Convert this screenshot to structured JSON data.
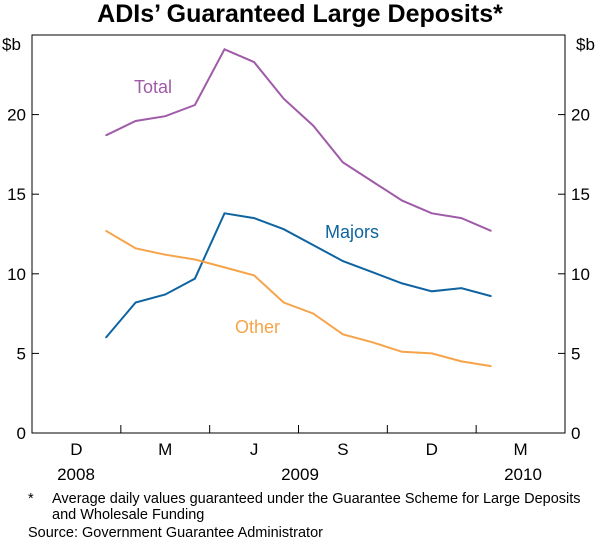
{
  "chart_data": {
    "type": "line",
    "title": "ADIs’ Guaranteed Large Deposits*",
    "ylabel_left": "$b",
    "ylabel_right": "$b",
    "ylim": [
      0,
      25
    ],
    "yticks": [
      0,
      5,
      10,
      15,
      20
    ],
    "xtick_labels": [
      "D",
      "M",
      "J",
      "S",
      "D",
      "M"
    ],
    "year_labels": [
      "2008",
      "2009",
      "2010"
    ],
    "x": [
      "Jan 2009",
      "Feb 2009",
      "Mar 2009",
      "Apr 2009",
      "May 2009",
      "Jun 2009",
      "Jul 2009",
      "Aug 2009",
      "Sep 2009",
      "Oct 2009",
      "Nov 2009",
      "Dec 2009",
      "Jan 2010",
      "Feb 2010"
    ],
    "series": [
      {
        "name": "Total",
        "color": "#a05ba8",
        "values": [
          18.7,
          19.6,
          19.9,
          20.6,
          24.1,
          23.3,
          21.0,
          19.3,
          17.0,
          15.8,
          14.6,
          13.8,
          13.5,
          12.7
        ]
      },
      {
        "name": "Majors",
        "color": "#0e64a0",
        "values": [
          6.0,
          8.2,
          8.7,
          9.7,
          13.8,
          13.5,
          12.8,
          11.8,
          10.8,
          10.1,
          9.4,
          8.9,
          9.1,
          8.6
        ]
      },
      {
        "name": "Other",
        "color": "#f6a44a",
        "values": [
          12.7,
          11.6,
          11.2,
          10.9,
          10.4,
          9.9,
          8.2,
          7.5,
          6.2,
          5.7,
          5.1,
          5.0,
          4.5,
          4.2
        ]
      }
    ],
    "grid": false
  },
  "footnote": "Average daily values guaranteed under the Guarantee Scheme for Large Deposits and Wholesale Funding",
  "footnote_marker": "*",
  "source": "Source: Government Guarantee Administrator"
}
